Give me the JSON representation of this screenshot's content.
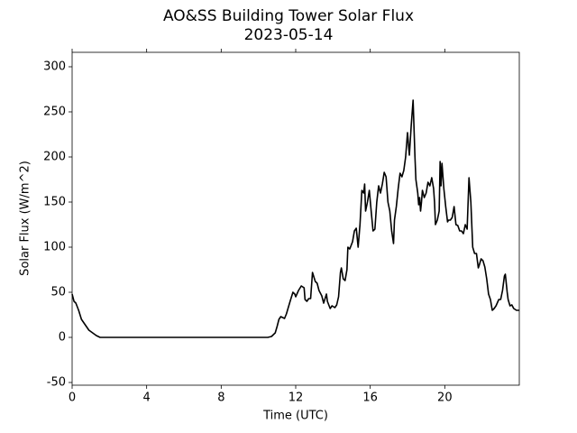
{
  "chart_data": {
    "type": "line",
    "title": "AO&SS Building Tower Solar Flux",
    "subtitle": "2023-05-14",
    "x_label": "Time (UTC)",
    "y_label": "Solar Flux (W/m^2)",
    "xlim": [
      0,
      24
    ],
    "xticks": [
      0,
      4,
      8,
      12,
      16,
      20
    ],
    "ylim": [
      -53,
      316
    ],
    "yticks": [
      -50,
      0,
      50,
      100,
      150,
      200,
      250,
      300
    ],
    "grid": false,
    "series": [
      {
        "name": "Solar Flux",
        "color": "#000000",
        "x": [
          0,
          0.1,
          0.2,
          0.35,
          0.5,
          0.7,
          0.9,
          1.1,
          1.3,
          1.5,
          10.5,
          10.7,
          10.9,
          11.0,
          11.1,
          11.2,
          11.4,
          11.5,
          11.7,
          11.85,
          11.95,
          12.0,
          12.15,
          12.3,
          12.45,
          12.5,
          12.6,
          12.7,
          12.8,
          12.9,
          13.05,
          13.15,
          13.25,
          13.4,
          13.5,
          13.65,
          13.7,
          13.85,
          13.95,
          14.1,
          14.2,
          14.3,
          14.4,
          14.45,
          14.55,
          14.65,
          14.75,
          14.8,
          14.9,
          15.05,
          15.15,
          15.25,
          15.35,
          15.45,
          15.55,
          15.65,
          15.7,
          15.75,
          15.85,
          15.95,
          16.05,
          16.15,
          16.25,
          16.35,
          16.45,
          16.55,
          16.65,
          16.75,
          16.85,
          16.95,
          17.05,
          17.15,
          17.25,
          17.3,
          17.4,
          17.5,
          17.6,
          17.7,
          17.8,
          17.9,
          18.0,
          18.1,
          18.2,
          18.3,
          18.4,
          18.45,
          18.55,
          18.6,
          18.65,
          18.7,
          18.75,
          18.8,
          18.9,
          19.0,
          19.1,
          19.2,
          19.3,
          19.4,
          19.45,
          19.5,
          19.6,
          19.7,
          19.75,
          19.8,
          19.85,
          19.95,
          20.05,
          20.15,
          20.2,
          20.3,
          20.4,
          20.5,
          20.6,
          20.7,
          20.8,
          20.9,
          21.0,
          21.1,
          21.2,
          21.3,
          21.4,
          21.5,
          21.6,
          21.7,
          21.8,
          21.85,
          21.95,
          22.05,
          22.15,
          22.25,
          22.35,
          22.45,
          22.55,
          22.65,
          22.75,
          22.9,
          23.0,
          23.1,
          23.2,
          23.25,
          23.35,
          23.4,
          23.5,
          23.6,
          23.7,
          23.85,
          24
        ],
        "values": [
          48,
          40,
          38,
          30,
          20,
          14,
          8,
          5,
          2,
          0,
          0,
          1,
          5,
          12,
          20,
          23,
          21,
          26,
          40,
          50,
          48,
          45,
          52,
          57,
          55,
          42,
          40,
          43,
          43,
          72,
          62,
          60,
          52,
          46,
          38,
          48,
          40,
          32,
          35,
          33,
          36,
          45,
          72,
          77,
          65,
          63,
          75,
          100,
          98,
          106,
          118,
          121,
          100,
          125,
          163,
          160,
          170,
          140,
          150,
          163,
          140,
          118,
          120,
          150,
          168,
          160,
          170,
          183,
          178,
          150,
          140,
          118,
          104,
          130,
          145,
          165,
          182,
          178,
          185,
          200,
          227,
          202,
          235,
          263,
          200,
          175,
          160,
          147,
          155,
          140,
          150,
          163,
          155,
          160,
          172,
          168,
          177,
          165,
          150,
          125,
          130,
          140,
          195,
          168,
          193,
          165,
          145,
          128,
          130,
          130,
          133,
          145,
          125,
          124,
          118,
          118,
          115,
          125,
          120,
          177,
          150,
          100,
          93,
          93,
          77,
          80,
          87,
          85,
          78,
          65,
          48,
          42,
          30,
          32,
          35,
          42,
          42,
          52,
          68,
          70,
          50,
          42,
          35,
          36,
          32,
          30,
          30
        ]
      }
    ]
  }
}
